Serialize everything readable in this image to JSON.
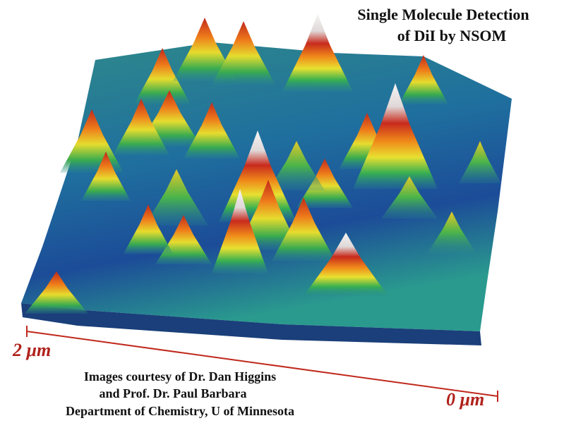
{
  "title": [
    "Single Molecule Detection",
    "of DiI by NSOM"
  ],
  "scale": {
    "start_label": "2 μm",
    "end_label": "0 μm"
  },
  "credits": [
    "Images courtesy of Dr. Dan Higgins",
    "and Prof. Dr. Paul Barbara",
    "Department of Chemistry, U of Minnesota"
  ]
}
